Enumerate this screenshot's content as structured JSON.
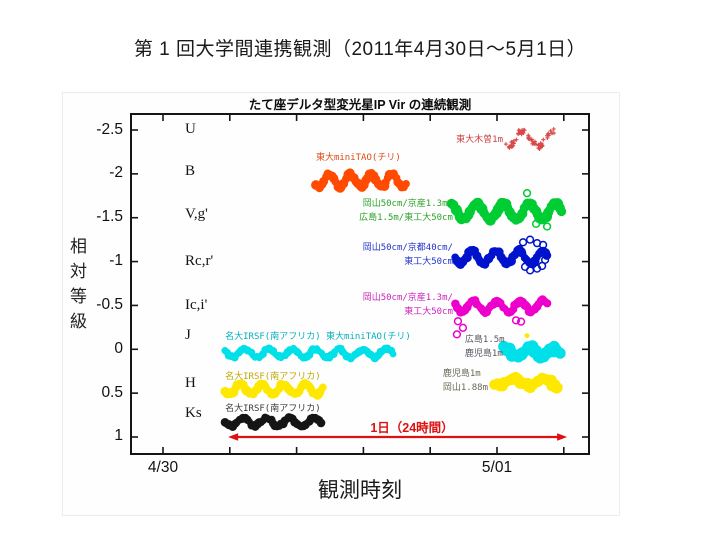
{
  "slide": {
    "title": "第 1 回大学間連携観測（2011年4月30日〜5月1日）"
  },
  "chart_data": {
    "type": "scatter",
    "title": "たて座デルタ型変光星IP Vir の連続観測",
    "xlabel": "観測時刻",
    "ylabel": "相対等級",
    "x_unit": "days (0 = 4/30 tick, 1 = 5/01 tick)",
    "x_range_days": [
      -0.099,
      1.278
    ],
    "y_range_mag": [
      -2.69,
      1.21
    ],
    "grid": false,
    "x_ticks": [
      {
        "value": 0.0,
        "label": "4/30"
      },
      {
        "value": 0.2,
        "label": ""
      },
      {
        "value": 0.4,
        "label": ""
      },
      {
        "value": 0.6,
        "label": ""
      },
      {
        "value": 0.8,
        "label": ""
      },
      {
        "value": 1.0,
        "label": "5/01"
      },
      {
        "value": 1.2,
        "label": ""
      }
    ],
    "y_ticks": [
      {
        "value": -2.5,
        "label": "-2.5"
      },
      {
        "value": -2.0,
        "label": "-2"
      },
      {
        "value": -1.5,
        "label": "-1.5"
      },
      {
        "value": -1.0,
        "label": "-1"
      },
      {
        "value": -0.5,
        "label": "-0.5"
      },
      {
        "value": 0.0,
        "label": "0"
      },
      {
        "value": 0.5,
        "label": "0.5"
      },
      {
        "value": 1.0,
        "label": "1"
      }
    ],
    "bands": [
      {
        "label": "U",
        "mag": -2.5
      },
      {
        "label": "B",
        "mag": -2.02
      },
      {
        "label": "V,g'",
        "mag": -1.53
      },
      {
        "label": "Rc,r'",
        "mag": -1.0
      },
      {
        "label": "Ic,i'",
        "mag": -0.49
      },
      {
        "label": "J",
        "mag": -0.15
      },
      {
        "label": "H",
        "mag": 0.4
      },
      {
        "label": "Ks",
        "mag": 0.74
      }
    ],
    "series": [
      {
        "band": "U",
        "color": "#d94848",
        "style": "scatter-cross",
        "x_start": 1.024,
        "x_end": 1.168,
        "mag_center": -2.4,
        "amplitude": 0.09,
        "cycles": 1.6,
        "phase": 0.65,
        "thickness": 0.05,
        "n": 70
      },
      {
        "band": "B",
        "color": "#ff4a00",
        "style": "wave",
        "x_start": 0.458,
        "x_end": 0.733,
        "mag_center": -1.925,
        "amplitude": 0.075,
        "cycles": 4.4,
        "phase": 0.6,
        "thickness": 0.1
      },
      {
        "band": "V,g'",
        "color": "#00cc33",
        "style": "wave",
        "x_start": 0.865,
        "x_end": 1.195,
        "mag_center": -1.575,
        "amplitude": 0.09,
        "cycles": 4.2,
        "phase": 0.3,
        "thickness": 0.115,
        "outliers": [
          {
            "day": 1.09,
            "mag": -1.78
          },
          {
            "day": 1.117,
            "mag": -1.43
          },
          {
            "day": 1.15,
            "mag": -1.4
          }
        ]
      },
      {
        "band": "Rc,r'",
        "color": "#0013cc",
        "style": "wave",
        "x_start": 0.874,
        "x_end": 1.153,
        "mag_center": -1.05,
        "amplitude": 0.08,
        "cycles": 4.0,
        "phase": 0.5,
        "thickness": 0.1,
        "outliers": [
          {
            "day": 1.078,
            "mag": -1.22
          },
          {
            "day": 1.099,
            "mag": -1.25
          },
          {
            "day": 1.12,
            "mag": -1.21
          },
          {
            "day": 1.138,
            "mag": -1.19
          },
          {
            "day": 1.15,
            "mag": -1.07
          },
          {
            "day": 1.084,
            "mag": -0.94
          },
          {
            "day": 1.099,
            "mag": -0.9
          },
          {
            "day": 1.12,
            "mag": -0.92
          },
          {
            "day": 1.135,
            "mag": -0.95
          },
          {
            "day": 1.144,
            "mag": -1.02
          }
        ]
      },
      {
        "band": "Ic,i'",
        "color": "#ee00cc",
        "style": "wave",
        "x_start": 0.874,
        "x_end": 1.153,
        "mag_center": -0.49,
        "amplitude": 0.065,
        "cycles": 4.0,
        "phase": 0.45,
        "thickness": 0.095,
        "outliers": [
          {
            "day": 0.883,
            "mag": -0.32
          },
          {
            "day": 0.898,
            "mag": -0.245
          },
          {
            "day": 0.88,
            "mag": -0.17
          },
          {
            "day": 1.057,
            "mag": -0.33
          },
          {
            "day": 1.072,
            "mag": -0.315
          }
        ]
      },
      {
        "band": "J",
        "color": "#00e0e8",
        "style": "wave",
        "x_start": 0.186,
        "x_end": 0.694,
        "mag_center": 0.045,
        "amplitude": 0.05,
        "cycles": 7.2,
        "phase": 0.4,
        "thickness": 0.085
      },
      {
        "band": "J",
        "color": "#00e0e8",
        "style": "blob",
        "x_start": 1.024,
        "x_end": 1.195,
        "mag_center": 0.04,
        "amplitude": 0.05,
        "cycles": 2.3,
        "phase": 0.2,
        "thickness": 0.13
      },
      {
        "band": "H",
        "color": "#ffe800",
        "style": "wave",
        "x_start": 0.186,
        "x_end": 0.485,
        "mag_center": 0.455,
        "amplitude": 0.055,
        "cycles": 4.6,
        "phase": 0.55,
        "thickness": 0.1,
        "outliers": [
          {
            "day": 1.09,
            "mag": -0.155,
            "filled": true
          }
        ]
      },
      {
        "band": "H",
        "color": "#ffe800",
        "style": "blob",
        "x_start": 0.994,
        "x_end": 1.188,
        "mag_center": 0.375,
        "amplitude": 0.04,
        "cycles": 2.2,
        "phase": 0.6,
        "thickness": 0.12
      },
      {
        "band": "Ks",
        "color": "#151515",
        "style": "wave",
        "x_start": 0.186,
        "x_end": 0.476,
        "mag_center": 0.83,
        "amplitude": 0.045,
        "cycles": 4.1,
        "phase": 0.5,
        "thickness": 0.09
      }
    ],
    "annotations": [
      {
        "id": "u-telescope",
        "lines": [
          "東大木曽1m"
        ],
        "color": "#cc4040",
        "x": 1.018,
        "mag": -2.39,
        "align": "right"
      },
      {
        "id": "b-telescope",
        "lines": [
          "東大miniTAO(チリ)"
        ],
        "color": "#e04a10",
        "x": 0.458,
        "mag": -2.185,
        "align": "left"
      },
      {
        "id": "v-telescopes",
        "lines": [
          "岡山50cm/京産1.3m/",
          "広島1.5m/東工大50cm"
        ],
        "color": "#2ba32b",
        "x": 0.868,
        "mag": -1.575,
        "align": "right"
      },
      {
        "id": "rc-telescopes",
        "lines": [
          "岡山50cm/京都40cm/",
          "東工大50cm"
        ],
        "color": "#2233cc",
        "x": 0.868,
        "mag": -1.075,
        "align": "right"
      },
      {
        "id": "ic-telescopes",
        "lines": [
          "岡山50cm/京産1.3m/",
          "東工大50cm"
        ],
        "color": "#cc22bb",
        "x": 0.868,
        "mag": -0.505,
        "align": "right"
      },
      {
        "id": "j-left-telescopes",
        "lines": [
          "名大IRSF(南アフリカ) 東大miniTAO(チリ)"
        ],
        "color": "#00b0bb",
        "x": 0.186,
        "mag": -0.14,
        "align": "left"
      },
      {
        "id": "j-right-telescopes",
        "lines": [
          "広島1.5m",
          "鹿児島1m"
        ],
        "color": "#5a5560",
        "x": 0.904,
        "mag": -0.026,
        "align": "left"
      },
      {
        "id": "h-left-telescope",
        "lines": [
          "名大IRSF(南アフリカ)"
        ],
        "color": "#bfa700",
        "x": 0.186,
        "mag": 0.316,
        "align": "left"
      },
      {
        "id": "h-right-telescopes",
        "lines": [
          "鹿児島1m",
          "岡山1.88m"
        ],
        "color": "#6b6a55",
        "x": 0.838,
        "mag": 0.36,
        "align": "left"
      },
      {
        "id": "ks-telescope",
        "lines": [
          "名大IRSF(南アフリカ)"
        ],
        "color": "#3a3a3a",
        "x": 0.186,
        "mag": 0.68,
        "align": "left"
      }
    ],
    "arrow": {
      "label": "1日（24時間）",
      "color": "#dd1111",
      "x_start": 0.195,
      "x_end": 1.21,
      "mag": 1.0
    }
  }
}
